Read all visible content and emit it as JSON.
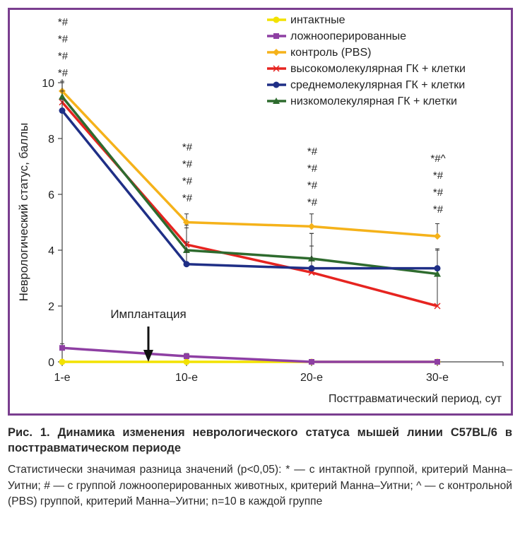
{
  "chart_data": {
    "type": "line",
    "ylabel": "Неврологический статус, баллы",
    "xlabel": "Посттравматический период, сут",
    "categories": [
      "1-е",
      "10-е",
      "20-е",
      "30-е"
    ],
    "ylim": [
      0,
      10
    ],
    "yticks": [
      "0",
      "2",
      "4",
      "6",
      "8",
      "10"
    ],
    "legend_position": "top-right",
    "series": [
      {
        "name": "интактные",
        "color": "#f2e200",
        "marker": "circle",
        "values": [
          0,
          0,
          0,
          0
        ],
        "errors": [
          0,
          0,
          0,
          0
        ]
      },
      {
        "name": "ложнооперированные",
        "color": "#8e3fa3",
        "marker": "square",
        "values": [
          0.5,
          0.2,
          0,
          0
        ],
        "errors": [
          0.15,
          0.1,
          0,
          0
        ]
      },
      {
        "name": "контроль (PBS)",
        "color": "#f5b21a",
        "marker": "diamond",
        "values": [
          9.7,
          5.0,
          4.85,
          4.5
        ],
        "errors": [
          0.35,
          0.3,
          0.45,
          0.45
        ]
      },
      {
        "name": "высокомолекулярная ГК + клетки",
        "color": "#e62420",
        "marker": "x",
        "values": [
          9.3,
          4.2,
          3.2,
          2.0
        ],
        "errors": [
          0.4,
          0.6,
          1.4,
          2.0
        ]
      },
      {
        "name": "среднемолекулярная ГК + клетки",
        "color": "#1f2f86",
        "marker": "circle",
        "values": [
          9.0,
          3.5,
          3.35,
          3.35
        ],
        "errors": [
          0.4,
          0.8,
          0.8,
          0.7
        ]
      },
      {
        "name": "низкомолекулярная ГК + клетки",
        "color": "#2e6b2e",
        "marker": "triangle",
        "values": [
          9.5,
          4.0,
          3.7,
          3.15
        ],
        "errors": [
          0.5,
          0.9,
          0.9,
          0.9
        ]
      }
    ],
    "significance": [
      {
        "x_index": 0,
        "marks": [
          "*#",
          "*#",
          "*#",
          "*#"
        ]
      },
      {
        "x_index": 1,
        "marks": [
          "*#",
          "*#",
          "*#",
          "*#"
        ]
      },
      {
        "x_index": 2,
        "marks": [
          "*#",
          "*#",
          "*#",
          "*#"
        ]
      },
      {
        "x_index": 3,
        "marks": [
          "*#^",
          "*#",
          "*#",
          "*#"
        ]
      }
    ],
    "annotation": {
      "text": "Имплантация",
      "x_between": [
        "1-е",
        "10-е"
      ]
    }
  },
  "caption": {
    "title": "Рис. 1. Динамика изменения неврологического статуса мышей линии C57BL/6 в посттравматическом периоде",
    "body": "Статистически значимая разница значений (p<0,05): * — с интактной группой, критерий Манна–Уитни; # — с группой ложнооперированных животных, критерий Манна–Уитни; ^ — с контрольной (PBS) группой, критерий Манна–Уитни; n=10 в каждой группе"
  }
}
